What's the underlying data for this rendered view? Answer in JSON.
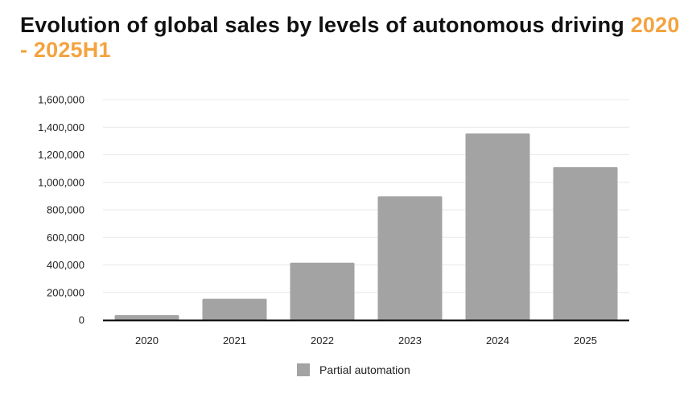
{
  "chart_data": {
    "type": "bar",
    "title": "Evolution of global sales by levels of autonomous driving",
    "title_highlight": "2020 - 2025H1",
    "categories": [
      "2020",
      "2021",
      "2022",
      "2023",
      "2024",
      "2025"
    ],
    "series": [
      {
        "name": "Partial automation",
        "values": [
          35000,
          154000,
          416000,
          898000,
          1355000,
          1110000
        ]
      }
    ],
    "ylim": [
      0,
      1600000
    ],
    "yticks": [
      "0",
      "200,000",
      "400,000",
      "600,000",
      "800,000",
      "1,000,000",
      "1,200,000",
      "1,400,000",
      "1,600,000"
    ],
    "grid": true,
    "legend_position": "bottom",
    "colors": {
      "bar": "#a3a3a3",
      "title_highlight": "#f4a340",
      "grid": "#e8e8e8",
      "axis": "#000000"
    }
  }
}
